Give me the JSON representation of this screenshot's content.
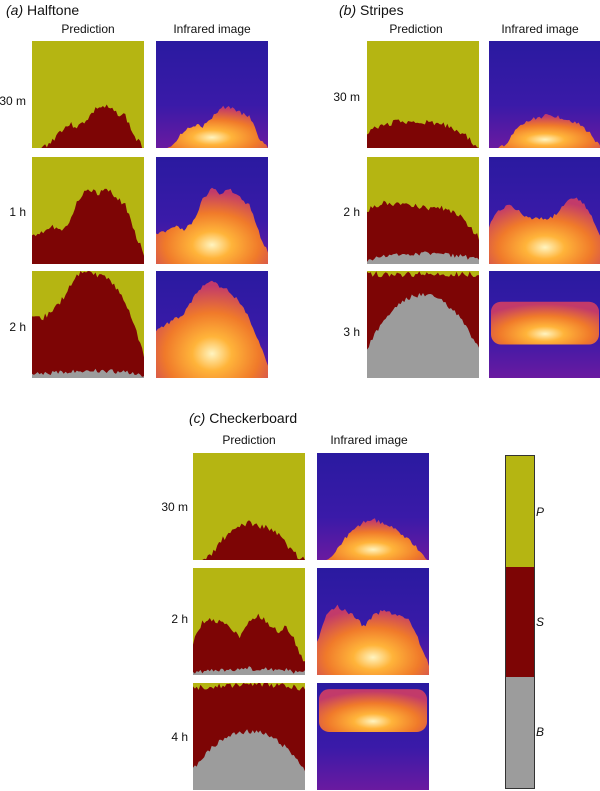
{
  "panels": [
    {
      "letter": "(a)",
      "name": "Halftone",
      "columns": [
        "Prediction",
        "Infrared image"
      ],
      "rows": [
        "30 m",
        "1 h",
        "2 h"
      ]
    },
    {
      "letter": "(b)",
      "name": "Stripes",
      "columns": [
        "Prediction",
        "Infrared image"
      ],
      "rows": [
        "30 m",
        "2 h",
        "3 h"
      ]
    },
    {
      "letter": "(c)",
      "name": "Checkerboard",
      "columns": [
        "Prediction",
        "Infrared image"
      ],
      "rows": [
        "30 m",
        "2 h",
        "4 h"
      ]
    }
  ],
  "colorbar": {
    "labels": [
      "P",
      "S",
      "B"
    ],
    "colors": [
      "#b5b512",
      "#7d0505",
      "#9c9c9c"
    ]
  },
  "colors": {
    "P": "#b5b512",
    "S": "#7d0505",
    "B": "#9c9c9c",
    "ir_background": "#1a1a8c",
    "ir_hot": "#ff9e2a"
  }
}
